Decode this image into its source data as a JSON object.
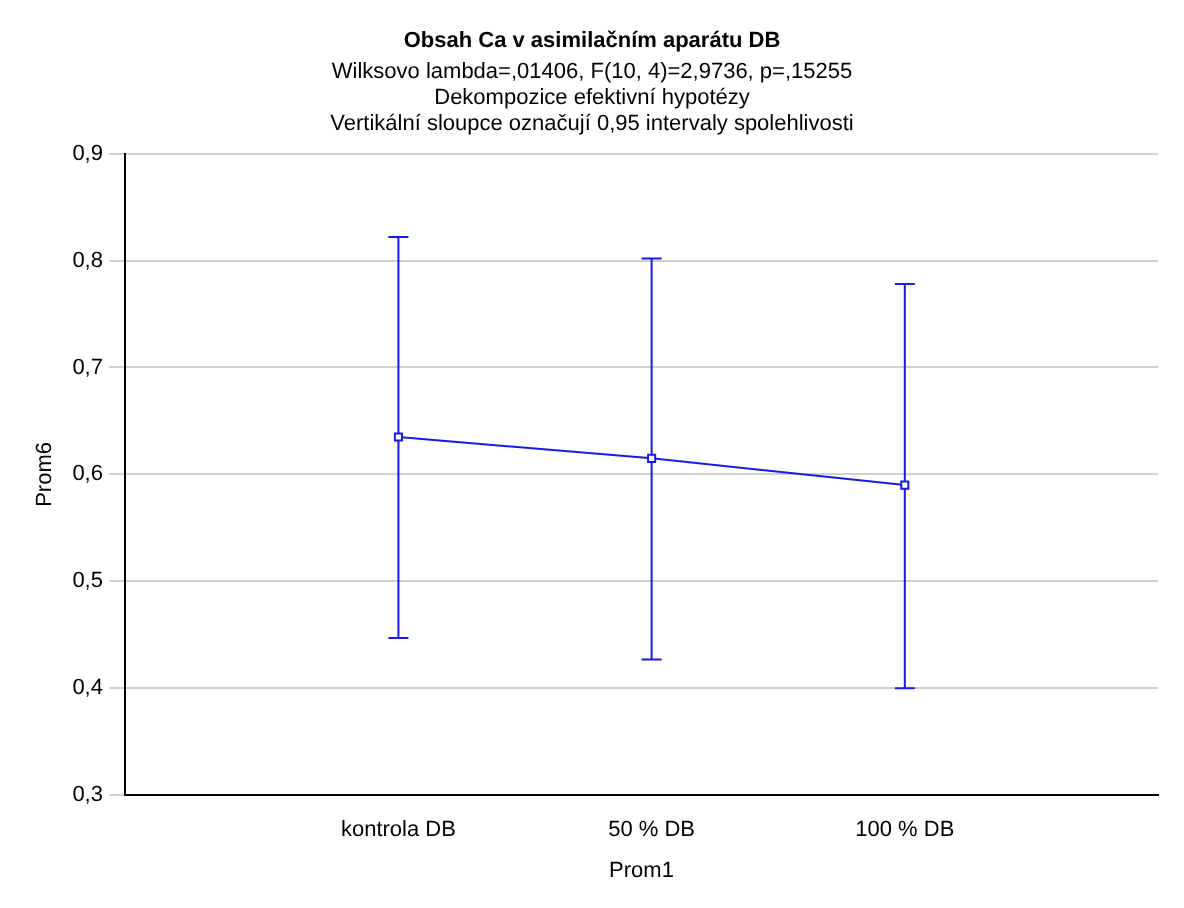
{
  "chart_data": {
    "type": "line",
    "title": "Obsah Ca v asimilačním aparátu DB",
    "subtitle": "Wilksovo lambda=,01406, F(10, 4)=2,9736, p=,15255",
    "annotations": [
      "Dekompozice efektivní hypotézy",
      "Vertikální sloupce označují 0,95 intervaly spolehlivosti"
    ],
    "xlabel": "Prom1",
    "ylabel": "Prom6",
    "categories": [
      "kontrola DB",
      "50 % DB",
      "100 % DB"
    ],
    "series": [
      {
        "color": "#1a1ae6",
        "values": [
          0.635,
          0.615,
          0.59
        ],
        "errors": [
          [
            0.447,
            0.822
          ],
          [
            0.427,
            0.802
          ],
          [
            0.4,
            0.778
          ]
        ]
      }
    ],
    "ylim": [
      0.3,
      0.9
    ],
    "yticks": [
      {
        "value": 0.3,
        "label": "0,3"
      },
      {
        "value": 0.4,
        "label": "0,4"
      },
      {
        "value": 0.5,
        "label": "0,5"
      },
      {
        "value": 0.6,
        "label": "0,6"
      },
      {
        "value": 0.7,
        "label": "0,7"
      },
      {
        "value": 0.8,
        "label": "0,8"
      },
      {
        "value": 0.9,
        "label": "0,9"
      }
    ],
    "grid": "y",
    "legend": false,
    "marker": "square",
    "line_style": "solid"
  }
}
